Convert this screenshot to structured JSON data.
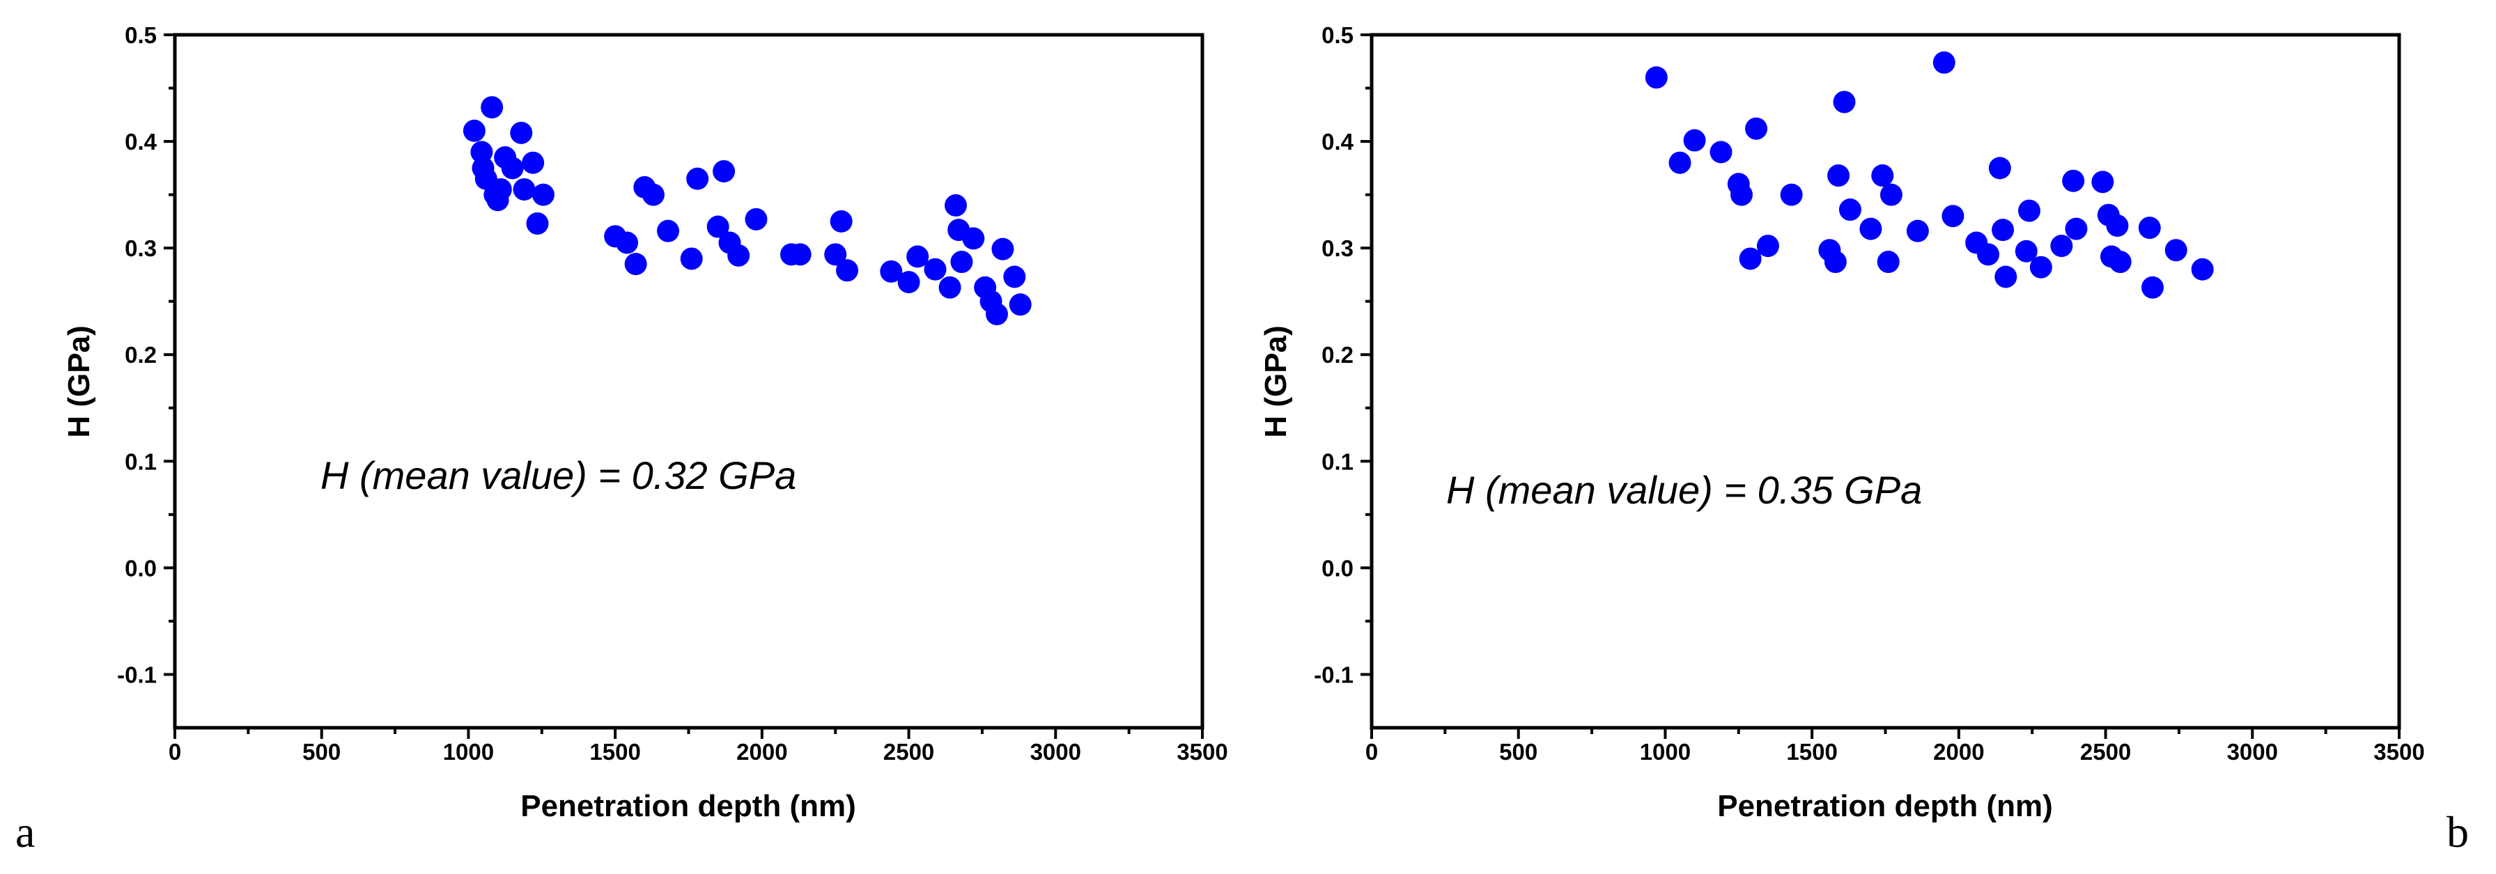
{
  "chart_data": [
    {
      "type": "scatter",
      "panel_label": "a",
      "xlabel": "Penetration depth (nm)",
      "ylabel": "H (GPa)",
      "xlim": [
        0,
        3500
      ],
      "ylim": [
        -0.15,
        0.5
      ],
      "xticks": [
        "0",
        "500",
        "1000",
        "1500",
        "2000",
        "2500",
        "3000",
        "3500"
      ],
      "yticks": [
        "-0.1",
        "0.0",
        "0.1",
        "0.2",
        "0.3",
        "0.4",
        "0.5"
      ],
      "annotation": "H (mean value) = 0.32 GPa",
      "marker_color": "#0000ff",
      "x": [
        1020,
        1045,
        1050,
        1060,
        1080,
        1090,
        1100,
        1110,
        1125,
        1150,
        1180,
        1190,
        1220,
        1235,
        1255,
        1500,
        1540,
        1570,
        1600,
        1630,
        1680,
        1760,
        1780,
        1850,
        1870,
        1890,
        1920,
        1980,
        2100,
        2130,
        2250,
        2270,
        2290,
        2440,
        2500,
        2530,
        2590,
        2640,
        2660,
        2670,
        2680,
        2720,
        2760,
        2780,
        2800,
        2820,
        2860,
        2880
      ],
      "y": [
        0.41,
        0.39,
        0.375,
        0.365,
        0.432,
        0.35,
        0.345,
        0.355,
        0.385,
        0.375,
        0.408,
        0.355,
        0.38,
        0.323,
        0.35,
        0.311,
        0.305,
        0.285,
        0.357,
        0.35,
        0.316,
        0.29,
        0.365,
        0.32,
        0.372,
        0.305,
        0.293,
        0.327,
        0.294,
        0.294,
        0.294,
        0.325,
        0.279,
        0.278,
        0.268,
        0.292,
        0.28,
        0.263,
        0.34,
        0.317,
        0.287,
        0.309,
        0.263,
        0.25,
        0.238,
        0.299,
        0.273,
        0.247
      ]
    },
    {
      "type": "scatter",
      "panel_label": "b",
      "xlabel": "Penetration depth (nm)",
      "ylabel": "H (GPa)",
      "xlim": [
        0,
        3500
      ],
      "ylim": [
        -0.15,
        0.5
      ],
      "xticks": [
        "0",
        "500",
        "1000",
        "1500",
        "2000",
        "2500",
        "3000",
        "3500"
      ],
      "yticks": [
        "-0.1",
        "0.0",
        "0.1",
        "0.2",
        "0.3",
        "0.4",
        "0.5"
      ],
      "annotation": "H (mean value) = 0.35 GPa",
      "marker_color": "#0000ff",
      "x": [
        970,
        1050,
        1100,
        1190,
        1250,
        1260,
        1290,
        1310,
        1350,
        1430,
        1560,
        1580,
        1590,
        1610,
        1630,
        1700,
        1740,
        1760,
        1770,
        1860,
        1950,
        1980,
        2060,
        2100,
        2140,
        2150,
        2160,
        2230,
        2240,
        2280,
        2350,
        2390,
        2400,
        2490,
        2510,
        2520,
        2540,
        2550,
        2650,
        2660,
        2740,
        2830
      ],
      "y": [
        0.46,
        0.38,
        0.401,
        0.39,
        0.36,
        0.35,
        0.29,
        0.412,
        0.302,
        0.35,
        0.298,
        0.287,
        0.368,
        0.437,
        0.336,
        0.318,
        0.368,
        0.287,
        0.35,
        0.316,
        0.474,
        0.33,
        0.305,
        0.294,
        0.375,
        0.317,
        0.273,
        0.297,
        0.335,
        0.282,
        0.302,
        0.363,
        0.318,
        0.362,
        0.331,
        0.292,
        0.321,
        0.287,
        0.319,
        0.263,
        0.298,
        0.28
      ]
    }
  ]
}
